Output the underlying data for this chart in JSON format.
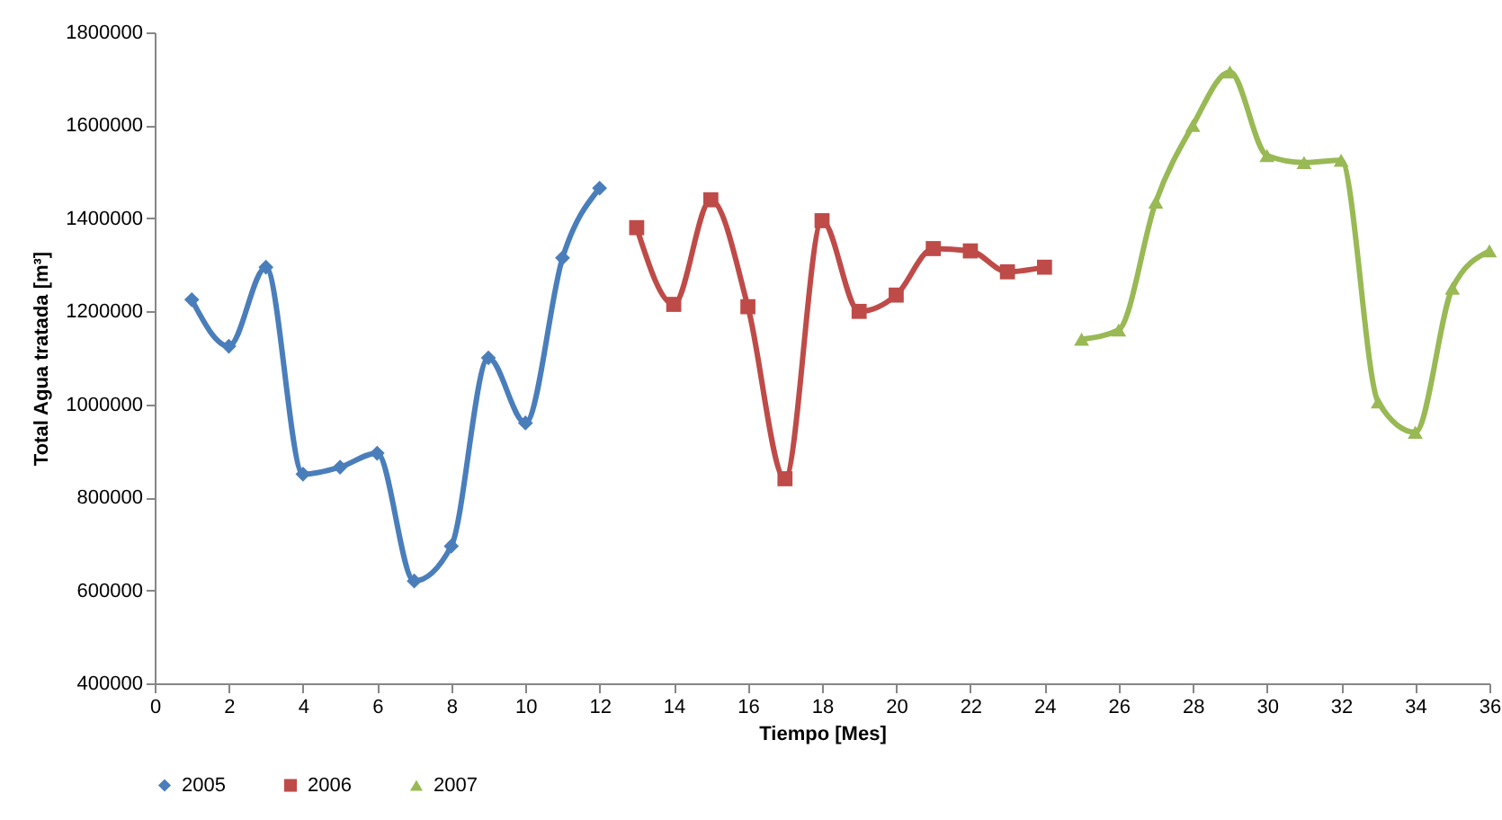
{
  "chart_data": {
    "type": "line",
    "xlabel": "Tiempo [Mes]",
    "ylabel": "Total Agua tratada [m³]",
    "xlim": [
      0,
      36
    ],
    "xticks": [
      0,
      2,
      4,
      6,
      8,
      10,
      12,
      14,
      16,
      18,
      20,
      22,
      24,
      26,
      28,
      30,
      32,
      34,
      36
    ],
    "ylim": [
      400000,
      1800000
    ],
    "yticks": [
      400000,
      600000,
      800000,
      1000000,
      1200000,
      1400000,
      1600000,
      1800000
    ],
    "grid": false,
    "legend": "bottom",
    "series": [
      {
        "name": "2005",
        "color": "#4a7ebb",
        "marker": "diamond",
        "x": [
          1,
          2,
          3,
          4,
          5,
          6,
          7,
          8,
          9,
          10,
          11,
          12
        ],
        "values": [
          1225000,
          1125000,
          1295000,
          850000,
          865000,
          895000,
          620000,
          695000,
          1100000,
          960000,
          1315000,
          1465000
        ]
      },
      {
        "name": "2006",
        "color": "#be4b48",
        "marker": "square",
        "x": [
          13,
          14,
          15,
          16,
          17,
          18,
          19,
          20,
          21,
          22,
          23,
          24
        ],
        "values": [
          1380000,
          1215000,
          1440000,
          1210000,
          840000,
          1395000,
          1200000,
          1235000,
          1335000,
          1330000,
          1285000,
          1295000
        ]
      },
      {
        "name": "2007",
        "color": "#98b954",
        "marker": "triangle",
        "x": [
          25,
          26,
          27,
          28,
          29,
          30,
          31,
          32,
          33,
          34,
          35,
          36
        ],
        "values": [
          1140000,
          1160000,
          1435000,
          1600000,
          1715000,
          1535000,
          1520000,
          1525000,
          1005000,
          940000,
          1250000,
          1330000
        ]
      }
    ]
  }
}
